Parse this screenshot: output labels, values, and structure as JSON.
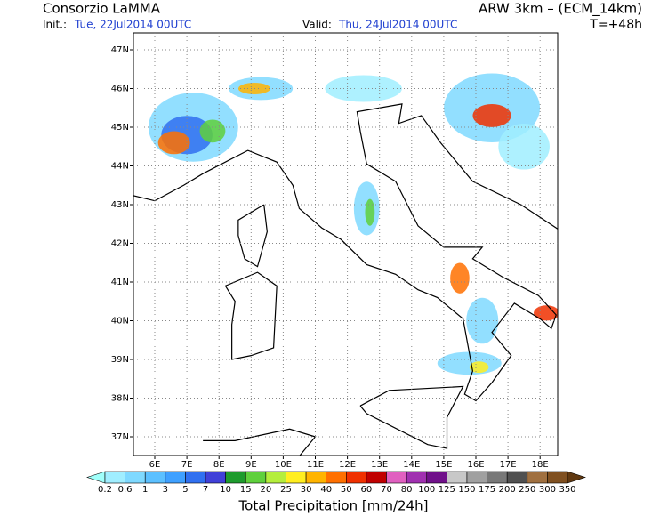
{
  "header": {
    "title": "Consorzio LaMMA",
    "model": "ARW 3km – (ECM_14km)",
    "init_label": "Init.:",
    "init_value": "Tue, 22Jul2014 00UTC",
    "valid_label": "Valid:",
    "valid_value": "Thu, 24Jul2014 00UTC",
    "lead": "T=+48h"
  },
  "map": {
    "lat_labels": [
      "47N",
      "46N",
      "45N",
      "44N",
      "43N",
      "42N",
      "41N",
      "40N",
      "39N",
      "38N",
      "37N"
    ],
    "lon_labels": [
      "6E",
      "7E",
      "8E",
      "9E",
      "10E",
      "11E",
      "12E",
      "13E",
      "14E",
      "15E",
      "16E",
      "17E",
      "18E"
    ]
  },
  "colorbar": {
    "labels": [
      0.2,
      0.6,
      1,
      3,
      5,
      7,
      10,
      15,
      20,
      25,
      30,
      40,
      50,
      60,
      70,
      80,
      100,
      125,
      150,
      175,
      200,
      250,
      300,
      350
    ],
    "colors": [
      "#a0fffa",
      "#a0eeff",
      "#7fd9ff",
      "#5cc0ff",
      "#3fa0ff",
      "#3070f0",
      "#4040d8",
      "#1e9b2d",
      "#5fd03c",
      "#b4ee3c",
      "#ffee20",
      "#ffb400",
      "#ff7000",
      "#f03000",
      "#c00000",
      "#e060c0",
      "#a030b0",
      "#70108a",
      "#c8c8c8",
      "#a0a0a0",
      "#787878",
      "#505050",
      "#a07040",
      "#805020",
      "#603810"
    ],
    "title": "Total Precipitation [mm/24h]"
  }
}
